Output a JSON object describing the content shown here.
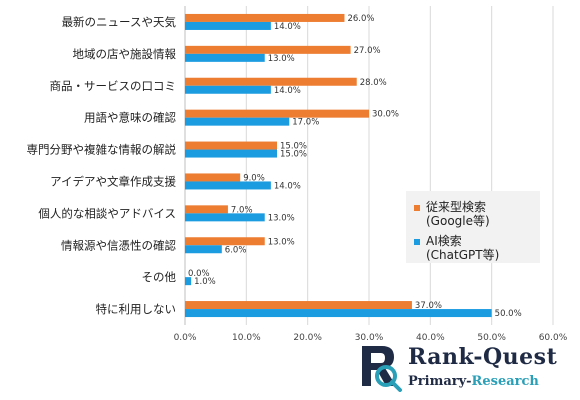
{
  "chart_data": {
    "type": "bar",
    "orientation": "horizontal",
    "categories": [
      "最新のニュースや天気",
      "地域の店や施設情報",
      "商品・サービスの口コミ",
      "用語や意味の確認",
      "専門分野や複雑な情報の解説",
      "アイデアや文章作成支援",
      "個人的な相談やアドバイス",
      "情報源や信憑性の確認",
      "その他",
      "特に利用しない"
    ],
    "series": [
      {
        "name": "従来型検索(Google等)",
        "color": "#ed7d31",
        "values": [
          26.0,
          27.0,
          28.0,
          30.0,
          15.0,
          9.0,
          7.0,
          13.0,
          0.0,
          37.0
        ],
        "labels": [
          "26.0%",
          "27.0%",
          "28.0%",
          "30.0%",
          "15.0%",
          "9.0%",
          "7.0%",
          "13.0%",
          "0.0%",
          "37.0%"
        ]
      },
      {
        "name": "AI検索(ChatGPT等)",
        "color": "#1b9be0",
        "values": [
          14.0,
          13.0,
          14.0,
          17.0,
          15.0,
          14.0,
          13.0,
          6.0,
          1.0,
          50.0
        ],
        "labels": [
          "14.0%",
          "13.0%",
          "14.0%",
          "17.0%",
          "15.0%",
          "14.0%",
          "13.0%",
          "6.0%",
          "1.0%",
          "50.0%"
        ]
      }
    ],
    "xlim": [
      0,
      60
    ],
    "xticks": [
      "0.0%",
      "10.0%",
      "20.0%",
      "30.0%",
      "40.0%",
      "50.0%",
      "60.0%"
    ],
    "grid": true,
    "legend_position": "right",
    "title": "",
    "xlabel": "",
    "ylabel": ""
  },
  "legend": {
    "line1a": "従来型検索",
    "line1b": "(Google等)",
    "line2a": "AI検索",
    "line2b": "(ChatGPT等)"
  },
  "brand": {
    "name": "Rank-Quest",
    "sub_part1": "Primary-",
    "sub_part2": "Research"
  }
}
